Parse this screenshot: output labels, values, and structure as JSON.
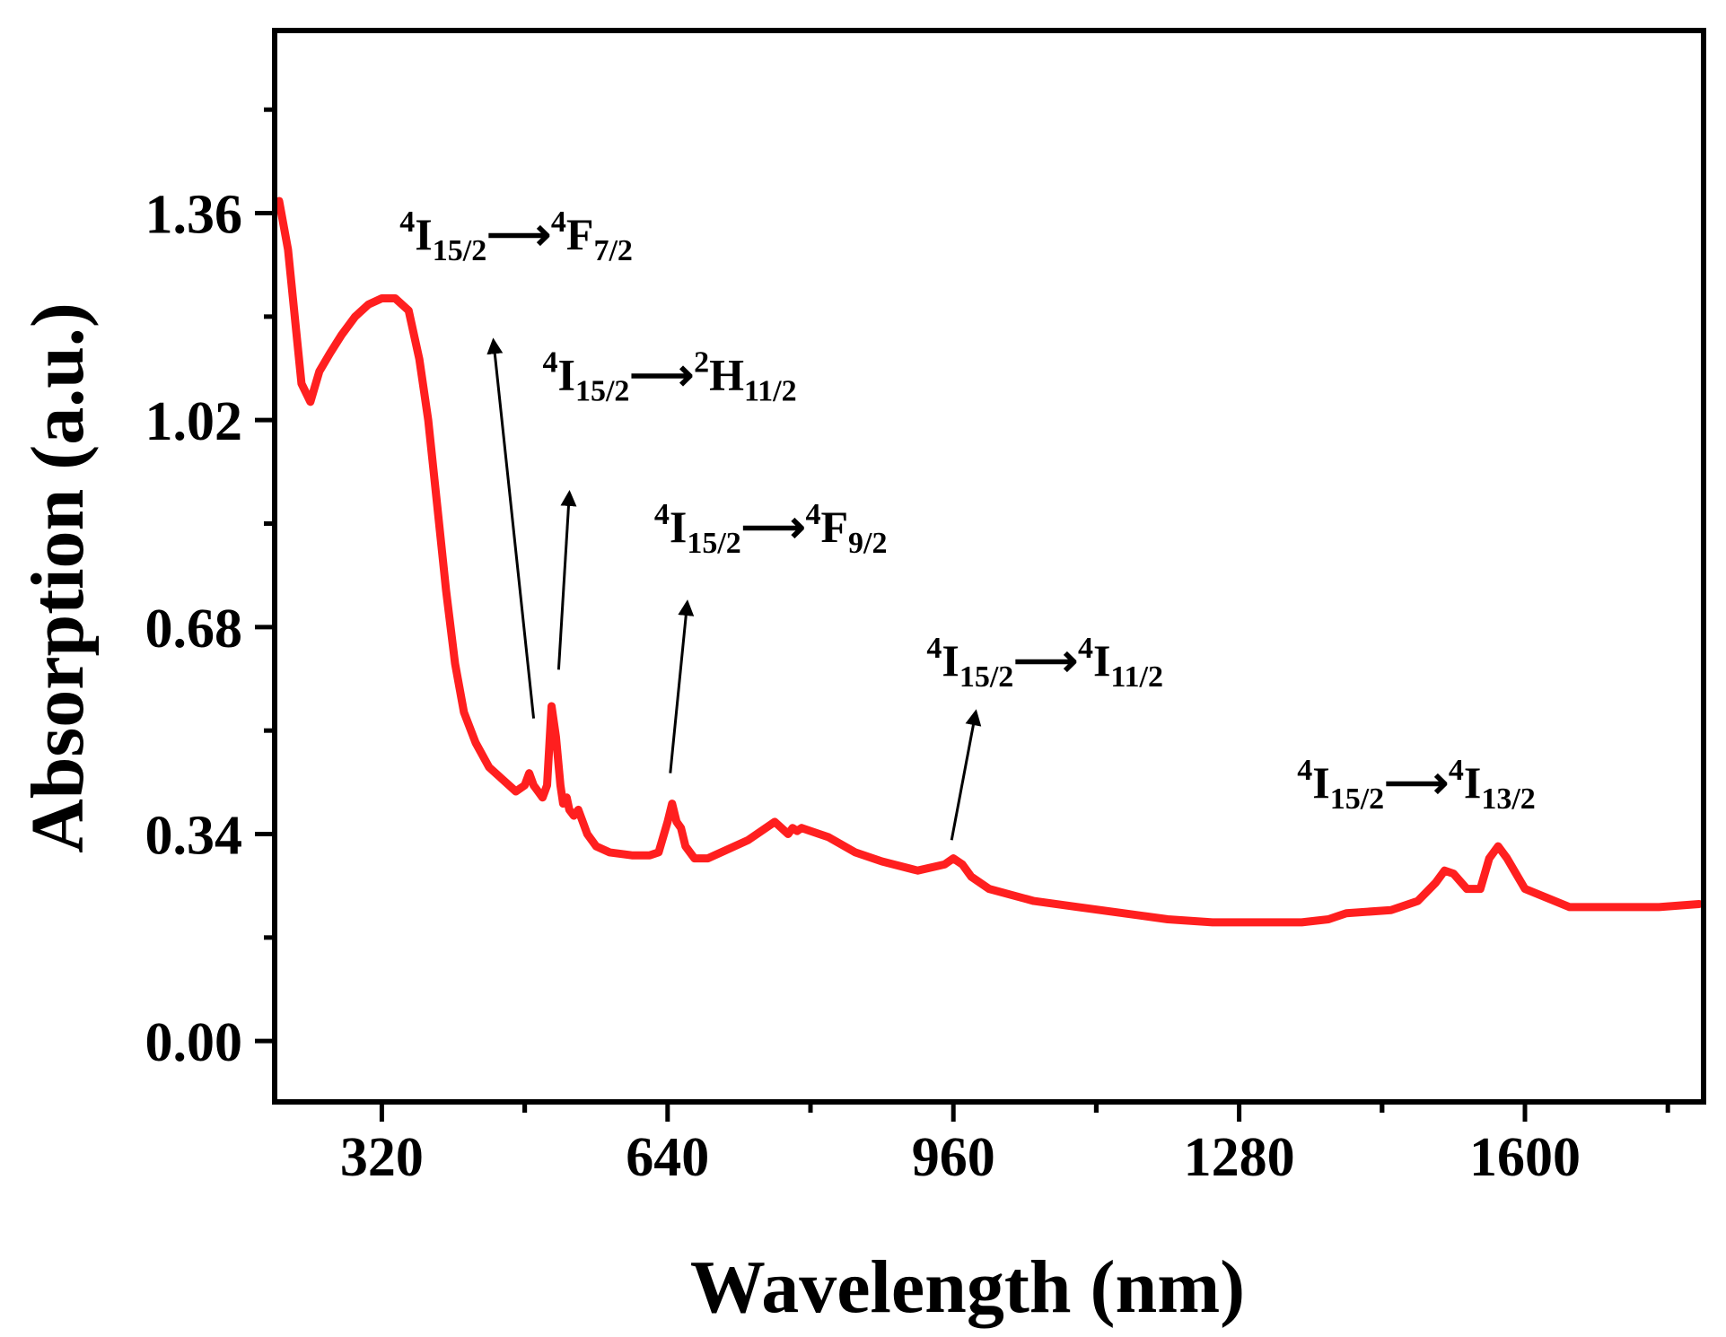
{
  "chart_data": {
    "type": "line",
    "xlabel": "Wavelength (nm)",
    "ylabel": "Absorption (a.u.)",
    "xlim": [
      200,
      1800
    ],
    "ylim": [
      -0.1,
      1.66
    ],
    "xticks": [
      320,
      640,
      960,
      1280,
      1600
    ],
    "xtick_labels": [
      "320",
      "640",
      "960",
      "1280",
      "1600"
    ],
    "yticks": [
      0.0,
      0.34,
      0.68,
      1.02,
      1.36
    ],
    "ytick_labels": [
      "0.00",
      "0.34",
      "0.68",
      "1.02",
      "1.36"
    ],
    "series": [
      {
        "name": "absorption",
        "color": "#ff1f1f",
        "x": [
          205,
          215,
          230,
          240,
          250,
          262,
          275,
          290,
          305,
          320,
          335,
          350,
          362,
          372,
          382,
          392,
          402,
          412,
          425,
          440,
          455,
          470,
          480,
          485,
          490,
          495,
          500,
          505,
          510,
          515,
          520,
          523,
          527,
          530,
          535,
          540,
          545,
          550,
          560,
          575,
          600,
          620,
          630,
          640,
          645,
          650,
          655,
          660,
          670,
          685,
          700,
          730,
          760,
          775,
          780,
          785,
          790,
          800,
          810,
          820,
          850,
          880,
          920,
          950,
          960,
          970,
          980,
          1000,
          1050,
          1100,
          1150,
          1200,
          1250,
          1300,
          1350,
          1380,
          1400,
          1450,
          1480,
          1500,
          1510,
          1520,
          1535,
          1550,
          1560,
          1570,
          1580,
          1600,
          1650,
          1700,
          1750,
          1795
        ],
        "y": [
          1.38,
          1.3,
          1.08,
          1.05,
          1.1,
          1.13,
          1.16,
          1.19,
          1.21,
          1.22,
          1.22,
          1.2,
          1.12,
          1.02,
          0.88,
          0.74,
          0.62,
          0.54,
          0.49,
          0.45,
          0.43,
          0.41,
          0.42,
          0.44,
          0.42,
          0.41,
          0.4,
          0.42,
          0.55,
          0.5,
          0.42,
          0.39,
          0.4,
          0.38,
          0.37,
          0.38,
          0.36,
          0.34,
          0.32,
          0.31,
          0.305,
          0.305,
          0.31,
          0.36,
          0.39,
          0.36,
          0.35,
          0.32,
          0.3,
          0.3,
          0.31,
          0.33,
          0.36,
          0.34,
          0.35,
          0.345,
          0.35,
          0.345,
          0.34,
          0.335,
          0.31,
          0.295,
          0.28,
          0.29,
          0.3,
          0.29,
          0.27,
          0.25,
          0.23,
          0.22,
          0.21,
          0.2,
          0.195,
          0.195,
          0.195,
          0.2,
          0.21,
          0.215,
          0.23,
          0.26,
          0.28,
          0.275,
          0.25,
          0.25,
          0.3,
          0.32,
          0.3,
          0.25,
          0.22,
          0.22,
          0.22,
          0.225
        ]
      }
    ],
    "annotations": [
      {
        "text": "4I15/2→4F7/2",
        "lower": "4",
        "ion": "I",
        "level": "15/2",
        "upper": "4",
        "term": "F",
        "term_j": "7/2",
        "label_x": 340,
        "label_y": 1.3,
        "arrow_from": [
          490,
          0.53
        ],
        "arrow_to": [
          445,
          1.15
        ]
      },
      {
        "text": "4I15/2→2H11/2",
        "lower": "4",
        "ion": "I",
        "level": "15/2",
        "upper": "2",
        "term": "H",
        "term_j": "11/2",
        "label_x": 500,
        "label_y": 1.07,
        "arrow_from": [
          518,
          0.61
        ],
        "arrow_to": [
          530,
          0.9
        ]
      },
      {
        "text": "4I15/2→4F9/2",
        "lower": "4",
        "ion": "I",
        "level": "15/2",
        "upper": "4",
        "term": "F",
        "term_j": "9/2",
        "label_x": 625,
        "label_y": 0.82,
        "arrow_from": [
          643,
          0.44
        ],
        "arrow_to": [
          662,
          0.72
        ]
      },
      {
        "text": "4I15/2→4I11/2",
        "lower": "4",
        "ion": "I",
        "level": "15/2",
        "upper": "4",
        "term": "I",
        "term_j": "11/2",
        "label_x": 930,
        "label_y": 0.6,
        "arrow_from": [
          958,
          0.33
        ],
        "arrow_to": [
          985,
          0.54
        ]
      },
      {
        "text": "4I15/2→4I13/2",
        "lower": "4",
        "ion": "I",
        "level": "15/2",
        "upper": "4",
        "term": "I",
        "term_j": "13/2",
        "label_x": 1345,
        "label_y": 0.4,
        "arrow_from": null,
        "arrow_to": null
      }
    ]
  }
}
